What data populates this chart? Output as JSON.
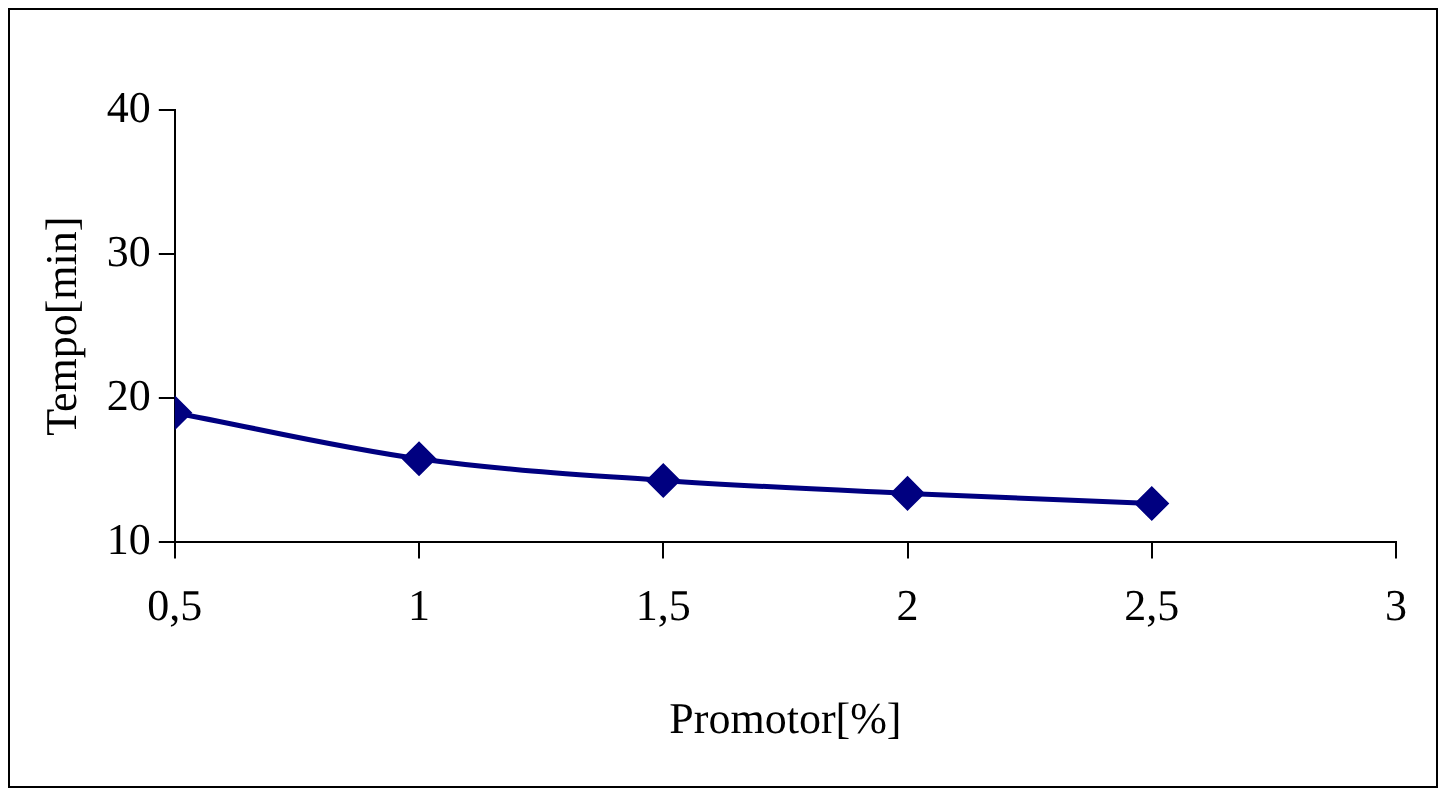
{
  "chart_data": {
    "type": "line",
    "xlabel": "Promotor[%]",
    "ylabel": "Tempo[min]",
    "x": [
      0.5,
      1,
      1.5,
      2,
      2.5
    ],
    "series": [
      {
        "color": "#000080",
        "values": [
          19.0,
          15.8,
          14.3,
          13.4,
          12.7
        ]
      }
    ],
    "xlim": [
      0.5,
      3
    ],
    "xticks": [
      {
        "value": 0.5,
        "label": "0,5"
      },
      1,
      {
        "value": 1.5,
        "label": "1,5"
      },
      2,
      {
        "value": 2.5,
        "label": "2,5"
      },
      3
    ],
    "ylim": [
      10,
      40
    ],
    "yticks": [
      10,
      20,
      30,
      40
    ],
    "grid": false,
    "legend": false,
    "marker": "diamond",
    "line_style": "solid"
  }
}
